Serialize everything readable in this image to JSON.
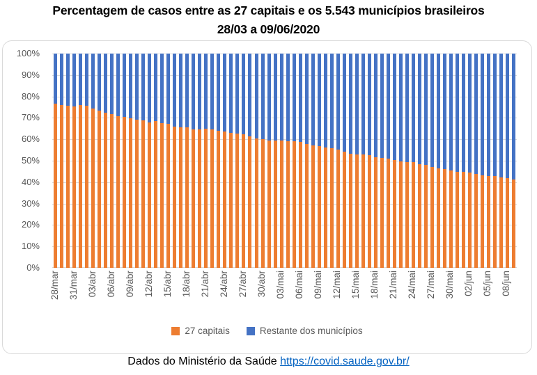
{
  "page_title": {
    "line1": "Percentagem de casos entre as 27 capitais e os 5.543 municípios brasileiros",
    "line2": "28/03 a 09/06/2020"
  },
  "chart_data": {
    "type": "bar",
    "subtype": "100-percent-stacked-column",
    "title": "Percentagem de casos entre as 27 capitais e os 5.543 municípios brasileiros 28/03 a 09/06/2020",
    "num_bars": 74,
    "x_tick_labels": [
      "28/mar",
      "31/mar",
      "03/abr",
      "06/abr",
      "09/abr",
      "12/abr",
      "15/abr",
      "18/abr",
      "21/abr",
      "24/abr",
      "27/abr",
      "30/abr",
      "03/mai",
      "06/mai",
      "09/mai",
      "12/mai",
      "15/mai",
      "18/mai",
      "21/mai",
      "24/mai",
      "27/mai",
      "30/mai",
      "02/jun",
      "05/jun",
      "08/jun"
    ],
    "x_tick_every_n_bars": 3,
    "y_tick_labels": [
      "0%",
      "10%",
      "20%",
      "30%",
      "40%",
      "50%",
      "60%",
      "70%",
      "80%",
      "90%",
      "100%"
    ],
    "ylim": [
      0,
      100
    ],
    "grid": "horizontal",
    "legend_position": "bottom",
    "series": [
      {
        "name": "27 capitais",
        "color": "#ED7D31",
        "values": [
          76.5,
          75.9,
          75.7,
          75.3,
          76.1,
          75.6,
          74.2,
          73.3,
          72.4,
          71.6,
          70.8,
          70.5,
          69.7,
          69.3,
          68.9,
          67.8,
          68.6,
          67.5,
          67.3,
          66.0,
          65.6,
          65.5,
          64.5,
          64.5,
          64.9,
          64.7,
          64.0,
          63.5,
          63.0,
          62.7,
          62.3,
          61.3,
          60.5,
          60.1,
          59.5,
          59.5,
          59.5,
          59.2,
          59.0,
          58.7,
          57.8,
          57.1,
          56.8,
          56.2,
          55.8,
          55.2,
          54.2,
          53.3,
          53.0,
          52.8,
          52.5,
          51.7,
          51.2,
          51.0,
          50.3,
          49.7,
          49.5,
          49.2,
          48.3,
          47.9,
          47.1,
          46.5,
          46.2,
          45.3,
          44.8,
          44.7,
          44.5,
          43.9,
          43.3,
          43.0,
          42.8,
          42.3,
          41.9,
          41.3
        ]
      },
      {
        "name": "Restante dos municípios",
        "color": "#4472C4",
        "values": [
          23.5,
          24.1,
          24.3,
          24.7,
          23.9,
          24.4,
          25.8,
          26.7,
          27.6,
          28.4,
          29.2,
          29.5,
          30.3,
          30.7,
          31.1,
          32.2,
          31.4,
          32.5,
          32.7,
          34.0,
          34.4,
          34.5,
          35.5,
          35.5,
          35.1,
          35.3,
          36.0,
          36.5,
          37.0,
          37.3,
          37.7,
          38.7,
          39.5,
          39.9,
          40.5,
          40.5,
          40.5,
          40.8,
          41.0,
          41.3,
          42.2,
          42.9,
          43.2,
          43.8,
          44.2,
          44.8,
          45.8,
          46.7,
          47.0,
          47.2,
          47.5,
          48.3,
          48.8,
          49.0,
          49.7,
          50.3,
          50.5,
          50.8,
          51.7,
          52.1,
          52.9,
          53.5,
          53.8,
          54.7,
          55.2,
          55.3,
          55.5,
          56.1,
          56.7,
          57.0,
          57.2,
          57.7,
          58.1,
          58.7
        ]
      }
    ]
  },
  "footer": {
    "prefix": "Dados do Ministério da Saúde ",
    "link_text": "https://covid.saude.gov.br/",
    "link_href": "https://covid.saude.gov.br/"
  },
  "colors": {
    "capitals": "#ED7D31",
    "rest": "#4472C4",
    "gridline": "#D9D9D9",
    "axis_text": "#595959",
    "frame_border": "#D9D9D9",
    "link": "#0563C1",
    "title": "#000000"
  }
}
